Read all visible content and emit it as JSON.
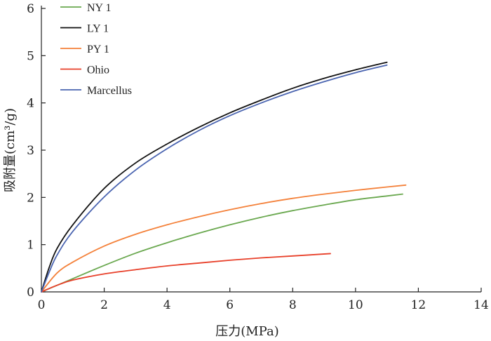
{
  "chart_data": {
    "type": "line",
    "xlabel": "压力(MPa)",
    "ylabel": "吸附量(cm³/g)",
    "xlim": [
      0,
      14
    ],
    "ylim": [
      0,
      6
    ],
    "xticks": [
      "0",
      "2",
      "4",
      "6",
      "8",
      "10",
      "12",
      "14"
    ],
    "yticks": [
      "0",
      "1",
      "2",
      "3",
      "4",
      "5",
      "6"
    ],
    "grid": false,
    "legend_position": "top-left",
    "series": [
      {
        "name": "NY 1",
        "color": "#6aa84f",
        "x": [
          0,
          0.5,
          1,
          2,
          3,
          4,
          5,
          6,
          7,
          8,
          9,
          10,
          11,
          11.5
        ],
        "y": [
          0,
          0.14,
          0.28,
          0.56,
          0.82,
          1.04,
          1.24,
          1.42,
          1.58,
          1.72,
          1.84,
          1.95,
          2.03,
          2.07
        ]
      },
      {
        "name": "LY 1",
        "color": "#111111",
        "x": [
          0,
          0.25,
          0.5,
          1,
          2,
          3,
          4,
          5,
          6,
          7,
          8,
          9,
          10,
          11
        ],
        "y": [
          0,
          0.52,
          0.92,
          1.42,
          2.19,
          2.73,
          3.13,
          3.48,
          3.79,
          4.06,
          4.31,
          4.52,
          4.7,
          4.86
        ]
      },
      {
        "name": "PY 1",
        "color": "#f4813a",
        "x": [
          0,
          0.5,
          1,
          2,
          3,
          4,
          5,
          6,
          7,
          8,
          9,
          10,
          11,
          11.6
        ],
        "y": [
          0,
          0.4,
          0.63,
          0.97,
          1.22,
          1.42,
          1.59,
          1.74,
          1.87,
          1.98,
          2.07,
          2.15,
          2.22,
          2.26
        ]
      },
      {
        "name": "Ohio",
        "color": "#e8402a",
        "x": [
          0,
          0.5,
          1,
          2,
          3,
          4,
          5,
          6,
          7,
          8,
          9.2
        ],
        "y": [
          0,
          0.14,
          0.25,
          0.38,
          0.47,
          0.55,
          0.61,
          0.67,
          0.72,
          0.76,
          0.81
        ]
      },
      {
        "name": "Marcellus",
        "color": "#4a64b0",
        "x": [
          0,
          0.25,
          0.5,
          1,
          2,
          3,
          4,
          5,
          6,
          7,
          8,
          9,
          10,
          11
        ],
        "y": [
          0,
          0.42,
          0.78,
          1.28,
          2.01,
          2.58,
          3.03,
          3.41,
          3.73,
          4.0,
          4.24,
          4.45,
          4.64,
          4.8
        ]
      }
    ]
  }
}
